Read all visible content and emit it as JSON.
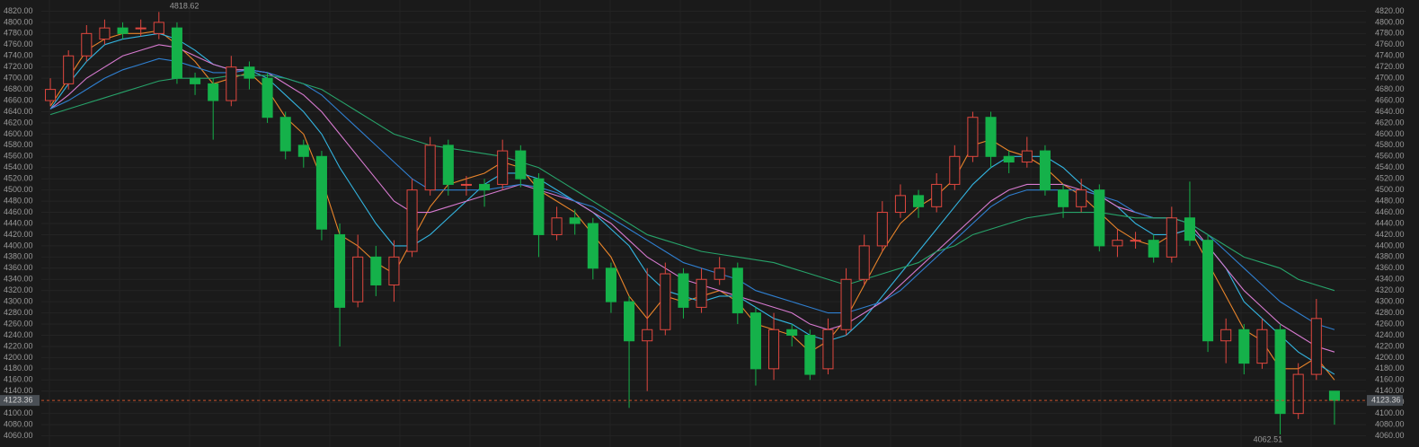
{
  "chart_data": {
    "type": "candlestick",
    "up_color": "#e0473f",
    "down_color": "#15b14a",
    "grid": true,
    "ylim": [
      4040,
      4840
    ],
    "yticks": [
      {
        "value": 4060,
        "label": "4060.00"
      },
      {
        "value": 4080,
        "label": "4080.00"
      },
      {
        "value": 4100,
        "label": "4100.00"
      },
      {
        "value": 4120,
        "label": "4120.00"
      },
      {
        "value": 4140,
        "label": "4140.00"
      },
      {
        "value": 4160,
        "label": "4160.00"
      },
      {
        "value": 4180,
        "label": "4180.00"
      },
      {
        "value": 4200,
        "label": "4200.00"
      },
      {
        "value": 4220,
        "label": "4220.00"
      },
      {
        "value": 4240,
        "label": "4240.00"
      },
      {
        "value": 4260,
        "label": "4260.00"
      },
      {
        "value": 4280,
        "label": "4280.00"
      },
      {
        "value": 4300,
        "label": "4300.00"
      },
      {
        "value": 4320,
        "label": "4320.00"
      },
      {
        "value": 4340,
        "label": "4340.00"
      },
      {
        "value": 4360,
        "label": "4360.00"
      },
      {
        "value": 4380,
        "label": "4380.00"
      },
      {
        "value": 4400,
        "label": "4400.00"
      },
      {
        "value": 4420,
        "label": "4420.00"
      },
      {
        "value": 4440,
        "label": "4440.00"
      },
      {
        "value": 4460,
        "label": "4460.00"
      },
      {
        "value": 4480,
        "label": "4480.00"
      },
      {
        "value": 4500,
        "label": "4500.00"
      },
      {
        "value": 4520,
        "label": "4520.00"
      },
      {
        "value": 4540,
        "label": "4540.00"
      },
      {
        "value": 4560,
        "label": "4560.00"
      },
      {
        "value": 4580,
        "label": "4580.00"
      },
      {
        "value": 4600,
        "label": "4600.00"
      },
      {
        "value": 4620,
        "label": "4620.00"
      },
      {
        "value": 4640,
        "label": "4640.00"
      },
      {
        "value": 4660,
        "label": "4660.00"
      },
      {
        "value": 4680,
        "label": "4680.00"
      },
      {
        "value": 4700,
        "label": "4700.00"
      },
      {
        "value": 4720,
        "label": "4720.00"
      },
      {
        "value": 4740,
        "label": "4740.00"
      },
      {
        "value": 4760,
        "label": "4760.00"
      },
      {
        "value": 4780,
        "label": "4780.00"
      },
      {
        "value": 4800,
        "label": "4800.00"
      },
      {
        "value": 4820,
        "label": "4820.00"
      }
    ],
    "candles": {
      "open": [
        4660,
        4690,
        4740,
        4770,
        4790,
        4790,
        4780,
        4790,
        4700,
        4690,
        4660,
        4720,
        4700,
        4630,
        4580,
        4560,
        4420,
        4300,
        4380,
        4330,
        4390,
        4500,
        4580,
        4510,
        4510,
        4510,
        4570,
        4520,
        4420,
        4450,
        4440,
        4360,
        4300,
        4230,
        4250,
        4350,
        4290,
        4340,
        4360,
        4280,
        4180,
        4250,
        4240,
        4180,
        4250,
        4340,
        4400,
        4460,
        4490,
        4470,
        4510,
        4560,
        4630,
        4560,
        4550,
        4570,
        4500,
        4470,
        4500,
        4400,
        4410,
        4410,
        4380,
        4450,
        4410,
        4230,
        4250,
        4190,
        4250,
        4100,
        4170,
        4140
      ],
      "high": [
        4700,
        4750,
        4795,
        4805,
        4800,
        4805,
        4818.62,
        4800,
        4710,
        4700,
        4740,
        4730,
        4710,
        4640,
        4590,
        4570,
        4440,
        4420,
        4400,
        4410,
        4520,
        4595,
        4590,
        4525,
        4520,
        4590,
        4580,
        4530,
        4470,
        4465,
        4450,
        4370,
        4310,
        4360,
        4370,
        4360,
        4360,
        4380,
        4370,
        4290,
        4280,
        4260,
        4250,
        4270,
        4360,
        4420,
        4480,
        4510,
        4500,
        4530,
        4580,
        4640,
        4640,
        4570,
        4595,
        4580,
        4510,
        4520,
        4510,
        4430,
        4425,
        4420,
        4470,
        4515,
        4420,
        4270,
        4260,
        4270,
        4260,
        4190,
        4305,
        4140
      ],
      "low": [
        4650,
        4680,
        4730,
        4760,
        4770,
        4775,
        4770,
        4690,
        4670,
        4590,
        4650,
        4680,
        4620,
        4555,
        4540,
        4410,
        4220,
        4290,
        4310,
        4300,
        4380,
        4490,
        4490,
        4490,
        4470,
        4500,
        4505,
        4380,
        4410,
        4420,
        4340,
        4280,
        4110,
        4140,
        4240,
        4270,
        4280,
        4330,
        4260,
        4150,
        4160,
        4220,
        4160,
        4170,
        4240,
        4330,
        4390,
        4450,
        4450,
        4460,
        4500,
        4550,
        4540,
        4530,
        4540,
        4490,
        4450,
        4460,
        4390,
        4380,
        4395,
        4370,
        4370,
        4400,
        4210,
        4190,
        4170,
        4180,
        4062.51,
        4090,
        4160,
        4080
      ],
      "close": [
        4680,
        4740,
        4780,
        4790,
        4780,
        4790,
        4800,
        4700,
        4690,
        4660,
        4720,
        4700,
        4630,
        4570,
        4560,
        4430,
        4290,
        4380,
        4330,
        4380,
        4500,
        4580,
        4510,
        4510,
        4500,
        4570,
        4520,
        4420,
        4450,
        4440,
        4360,
        4300,
        4230,
        4250,
        4350,
        4290,
        4340,
        4360,
        4280,
        4180,
        4250,
        4240,
        4170,
        4250,
        4340,
        4400,
        4460,
        4490,
        4470,
        4510,
        4560,
        4630,
        4560,
        4550,
        4570,
        4500,
        4470,
        4500,
        4400,
        4410,
        4410,
        4380,
        4450,
        4410,
        4230,
        4250,
        4190,
        4250,
        4100,
        4170,
        4270,
        4123.36
      ]
    },
    "lines": [
      {
        "color": "#e8842a",
        "values": [
          4650,
          4700,
          4750,
          4770,
          4780,
          4780,
          4785,
          4760,
          4730,
          4690,
          4700,
          4710,
          4680,
          4630,
          4600,
          4520,
          4420,
          4400,
          4370,
          4350,
          4410,
          4470,
          4510,
          4520,
          4530,
          4550,
          4540,
          4500,
          4480,
          4460,
          4420,
          4380,
          4310,
          4270,
          4310,
          4300,
          4310,
          4320,
          4300,
          4260,
          4250,
          4240,
          4210,
          4230,
          4270,
          4330,
          4390,
          4440,
          4470,
          4490,
          4520,
          4580,
          4590,
          4570,
          4560,
          4540,
          4510,
          4490,
          4460,
          4430,
          4410,
          4400,
          4420,
          4430,
          4370,
          4310,
          4250,
          4230,
          4180,
          4180,
          4200,
          4160
        ]
      },
      {
        "color": "#33b4e0",
        "values": [
          4645,
          4690,
          4730,
          4760,
          4770,
          4775,
          4780,
          4770,
          4750,
          4725,
          4715,
          4715,
          4700,
          4670,
          4640,
          4600,
          4540,
          4490,
          4440,
          4400,
          4400,
          4420,
          4450,
          4480,
          4510,
          4530,
          4530,
          4520,
          4500,
          4480,
          4460,
          4430,
          4400,
          4350,
          4320,
          4310,
          4300,
          4310,
          4310,
          4290,
          4270,
          4260,
          4240,
          4230,
          4240,
          4270,
          4310,
          4350,
          4390,
          4430,
          4470,
          4510,
          4540,
          4560,
          4560,
          4560,
          4540,
          4510,
          4490,
          4470,
          4440,
          4420,
          4420,
          4430,
          4400,
          4360,
          4300,
          4270,
          4240,
          4210,
          4190,
          4170
        ]
      },
      {
        "color": "#d77ad0",
        "values": [
          4645,
          4670,
          4700,
          4720,
          4740,
          4750,
          4760,
          4755,
          4740,
          4725,
          4715,
          4715,
          4710,
          4690,
          4670,
          4640,
          4600,
          4560,
          4520,
          4480,
          4460,
          4460,
          4470,
          4480,
          4490,
          4500,
          4510,
          4500,
          4490,
          4480,
          4460,
          4440,
          4410,
          4380,
          4360,
          4340,
          4330,
          4320,
          4310,
          4300,
          4290,
          4280,
          4260,
          4250,
          4260,
          4280,
          4300,
          4330,
          4360,
          4390,
          4420,
          4450,
          4480,
          4500,
          4510,
          4510,
          4510,
          4500,
          4490,
          4470,
          4460,
          4450,
          4450,
          4440,
          4400,
          4360,
          4320,
          4290,
          4260,
          4240,
          4220,
          4210
        ]
      },
      {
        "color": "#2f7fd0",
        "values": [
          4645,
          4660,
          4680,
          4700,
          4715,
          4725,
          4735,
          4730,
          4720,
          4710,
          4710,
          4715,
          4710,
          4700,
          4690,
          4670,
          4640,
          4610,
          4580,
          4550,
          4520,
          4500,
          4500,
          4500,
          4500,
          4505,
          4510,
          4505,
          4495,
          4480,
          4470,
          4450,
          4430,
          4410,
          4390,
          4370,
          4360,
          4350,
          4340,
          4320,
          4310,
          4300,
          4290,
          4280,
          4280,
          4290,
          4300,
          4320,
          4350,
          4380,
          4410,
          4440,
          4470,
          4490,
          4500,
          4500,
          4500,
          4500,
          4490,
          4480,
          4460,
          4450,
          4450,
          4440,
          4420,
          4390,
          4360,
          4330,
          4300,
          4280,
          4260,
          4250
        ]
      },
      {
        "color": "#27a36a",
        "values": [
          4635,
          4645,
          4655,
          4665,
          4675,
          4685,
          4695,
          4700,
          4700,
          4700,
          4705,
          4705,
          4705,
          4700,
          4690,
          4680,
          4660,
          4640,
          4620,
          4600,
          4590,
          4580,
          4575,
          4570,
          4565,
          4560,
          4550,
          4540,
          4520,
          4500,
          4480,
          4460,
          4440,
          4420,
          4410,
          4400,
          4390,
          4385,
          4380,
          4375,
          4370,
          4360,
          4350,
          4340,
          4330,
          4340,
          4350,
          4360,
          4370,
          4390,
          4400,
          4420,
          4430,
          4440,
          4450,
          4455,
          4460,
          4460,
          4460,
          4455,
          4450,
          4450,
          4450,
          4440,
          4420,
          4400,
          4380,
          4370,
          4360,
          4340,
          4330,
          4320
        ]
      }
    ]
  }
}
